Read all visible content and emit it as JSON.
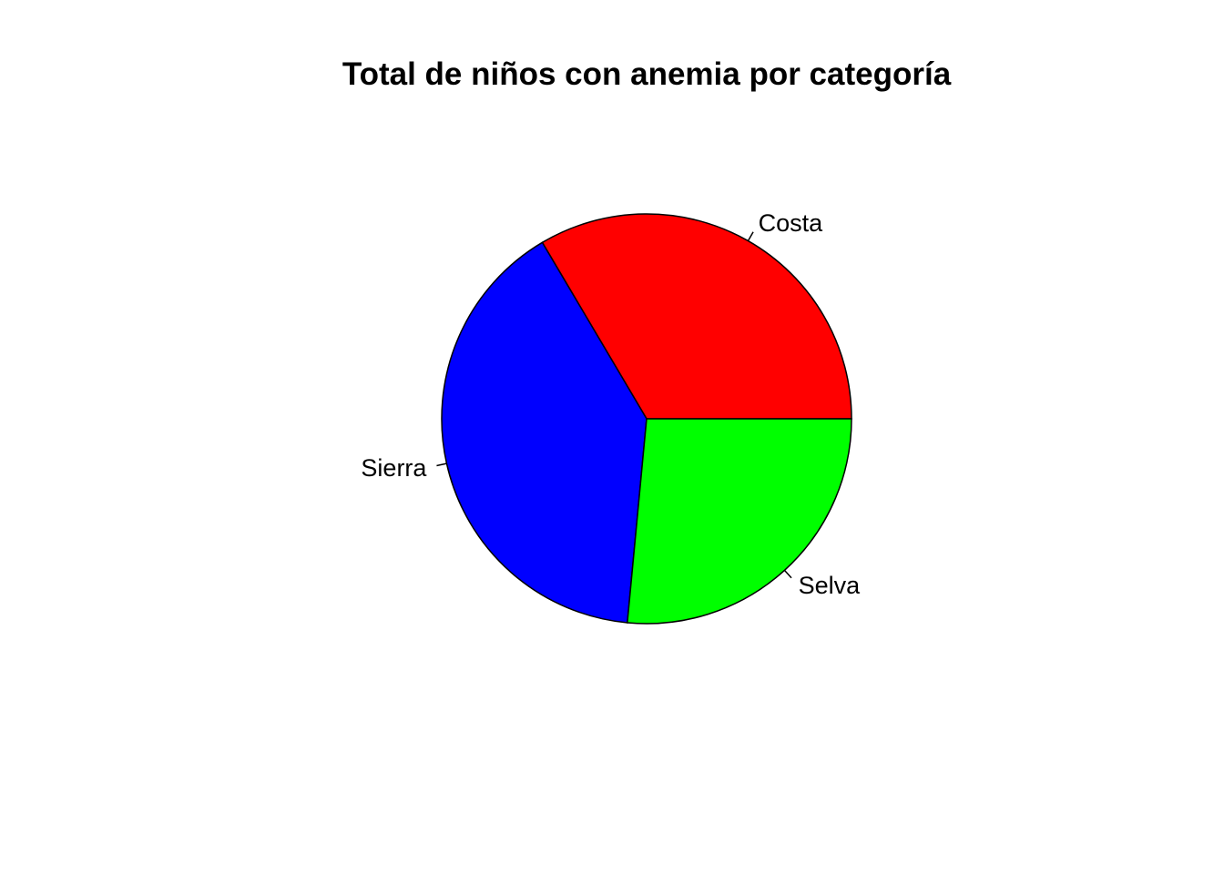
{
  "chart_data": {
    "type": "pie",
    "title": "Total de niños con anemia por categoría",
    "categories": [
      "Costa",
      "Sierra",
      "Selva"
    ],
    "values": [
      33.5,
      40.0,
      26.5
    ],
    "colors": [
      "#FF0000",
      "#0000FF",
      "#00FF00"
    ],
    "start_angle_deg": 0,
    "direction": "counterclockwise",
    "legend": "none"
  }
}
